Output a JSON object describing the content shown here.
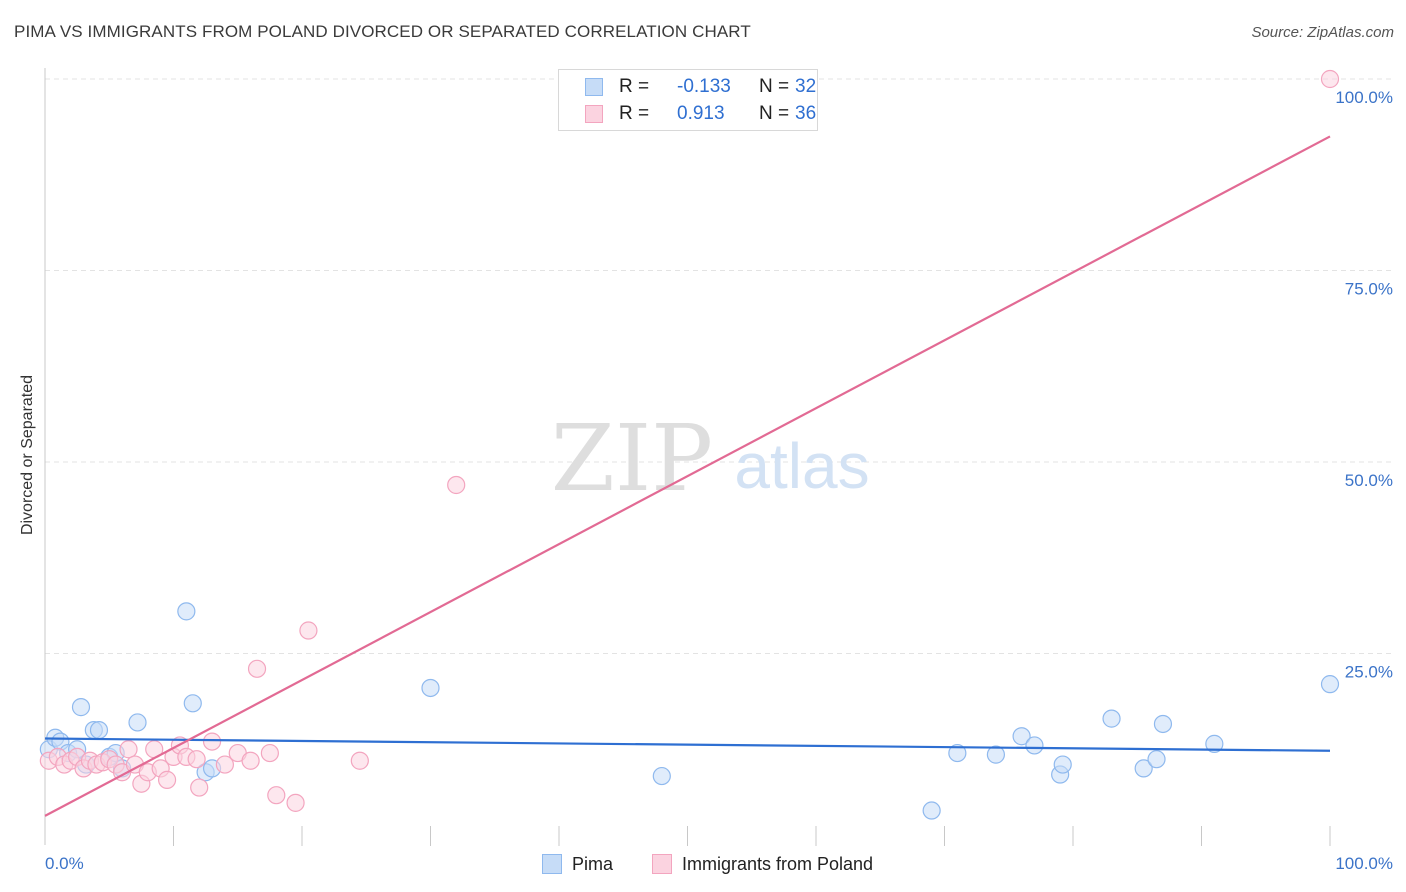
{
  "title": "PIMA VS IMMIGRANTS FROM POLAND DIVORCED OR SEPARATED CORRELATION CHART",
  "source": "Source: ZipAtlas.com",
  "watermark": {
    "zip": "ZIP",
    "atlas": "atlas"
  },
  "legend": {
    "rows": [
      {
        "r_label": "R =",
        "r_value": "-0.133",
        "n_label": "N =",
        "n_value": "32",
        "color": "#8fb9ee",
        "fill": "#c6dcf7"
      },
      {
        "r_label": "R =",
        "r_value": "0.913",
        "n_label": "N =",
        "n_value": "36",
        "color": "#f3a5bf",
        "fill": "#fbd3e0"
      }
    ]
  },
  "chart_data": {
    "type": "scatter",
    "title": "PIMA VS IMMIGRANTS FROM POLAND DIVORCED OR SEPARATED CORRELATION CHART",
    "xlabel": "",
    "ylabel": "Divorced or Separated",
    "xlim": [
      0,
      100
    ],
    "ylim": [
      0,
      100
    ],
    "x_tick_labels": [
      {
        "value": 0,
        "label": "0.0%"
      },
      {
        "value": 100,
        "label": "100.0%"
      }
    ],
    "y_tick_labels": [
      {
        "value": 25,
        "label": "25.0%"
      },
      {
        "value": 50,
        "label": "50.0%"
      },
      {
        "value": 75,
        "label": "75.0%"
      },
      {
        "value": 100,
        "label": "100.0%"
      }
    ],
    "grid": true,
    "series": [
      {
        "name": "Pima",
        "color": "#8fb9ee",
        "fill": "#c6dcf7",
        "line_color": "#2e6fd2",
        "trend": {
          "x": [
            0,
            100
          ],
          "y": [
            13.9,
            12.3
          ]
        },
        "points": [
          {
            "x": 0.3,
            "y": 12.5
          },
          {
            "x": 0.8,
            "y": 14.0
          },
          {
            "x": 1.2,
            "y": 13.5
          },
          {
            "x": 1.8,
            "y": 12.0
          },
          {
            "x": 2.5,
            "y": 12.5
          },
          {
            "x": 2.8,
            "y": 18.0
          },
          {
            "x": 3.2,
            "y": 10.5
          },
          {
            "x": 3.8,
            "y": 15.0
          },
          {
            "x": 4.2,
            "y": 15.0
          },
          {
            "x": 5.0,
            "y": 11.5
          },
          {
            "x": 5.5,
            "y": 12.0
          },
          {
            "x": 6.0,
            "y": 10.0
          },
          {
            "x": 7.2,
            "y": 16.0
          },
          {
            "x": 11.0,
            "y": 30.5
          },
          {
            "x": 11.5,
            "y": 18.5
          },
          {
            "x": 12.5,
            "y": 9.5
          },
          {
            "x": 13.0,
            "y": 10.0
          },
          {
            "x": 30.0,
            "y": 20.5
          },
          {
            "x": 48.0,
            "y": 9.0
          },
          {
            "x": 69.0,
            "y": 4.5
          },
          {
            "x": 71.0,
            "y": 12.0
          },
          {
            "x": 74.0,
            "y": 11.8
          },
          {
            "x": 76.0,
            "y": 14.2
          },
          {
            "x": 77.0,
            "y": 13.0
          },
          {
            "x": 79.0,
            "y": 9.2
          },
          {
            "x": 79.2,
            "y": 10.5
          },
          {
            "x": 83.0,
            "y": 16.5
          },
          {
            "x": 85.5,
            "y": 10.0
          },
          {
            "x": 86.5,
            "y": 11.2
          },
          {
            "x": 87.0,
            "y": 15.8
          },
          {
            "x": 91.0,
            "y": 13.2
          },
          {
            "x": 100.0,
            "y": 21.0
          }
        ]
      },
      {
        "name": "Immigrants from Poland",
        "color": "#f3a5bf",
        "fill": "#fbd3e0",
        "line_color": "#e26a94",
        "trend": {
          "x": [
            0,
            100
          ],
          "y": [
            3.8,
            92.5
          ]
        },
        "points": [
          {
            "x": 0.3,
            "y": 11.0
          },
          {
            "x": 1.0,
            "y": 11.5
          },
          {
            "x": 1.5,
            "y": 10.5
          },
          {
            "x": 2.0,
            "y": 11.0
          },
          {
            "x": 2.5,
            "y": 11.5
          },
          {
            "x": 3.0,
            "y": 10.0
          },
          {
            "x": 3.5,
            "y": 11.0
          },
          {
            "x": 4.0,
            "y": 10.5
          },
          {
            "x": 4.5,
            "y": 10.8
          },
          {
            "x": 5.0,
            "y": 11.2
          },
          {
            "x": 5.5,
            "y": 10.5
          },
          {
            "x": 6.0,
            "y": 9.5
          },
          {
            "x": 6.5,
            "y": 12.5
          },
          {
            "x": 7.0,
            "y": 10.5
          },
          {
            "x": 7.5,
            "y": 8.0
          },
          {
            "x": 8.0,
            "y": 9.5
          },
          {
            "x": 8.5,
            "y": 12.5
          },
          {
            "x": 9.0,
            "y": 10.0
          },
          {
            "x": 9.5,
            "y": 8.5
          },
          {
            "x": 10.0,
            "y": 11.5
          },
          {
            "x": 10.5,
            "y": 13.0
          },
          {
            "x": 11.0,
            "y": 11.5
          },
          {
            "x": 11.8,
            "y": 11.2
          },
          {
            "x": 12.0,
            "y": 7.5
          },
          {
            "x": 13.0,
            "y": 13.5
          },
          {
            "x": 14.0,
            "y": 10.5
          },
          {
            "x": 15.0,
            "y": 12.0
          },
          {
            "x": 16.0,
            "y": 11.0
          },
          {
            "x": 16.5,
            "y": 23.0
          },
          {
            "x": 17.5,
            "y": 12.0
          },
          {
            "x": 18.0,
            "y": 6.5
          },
          {
            "x": 19.5,
            "y": 5.5
          },
          {
            "x": 20.5,
            "y": 28.0
          },
          {
            "x": 24.5,
            "y": 11.0
          },
          {
            "x": 32.0,
            "y": 47.0
          },
          {
            "x": 100.0,
            "y": 100.0
          }
        ]
      }
    ]
  }
}
